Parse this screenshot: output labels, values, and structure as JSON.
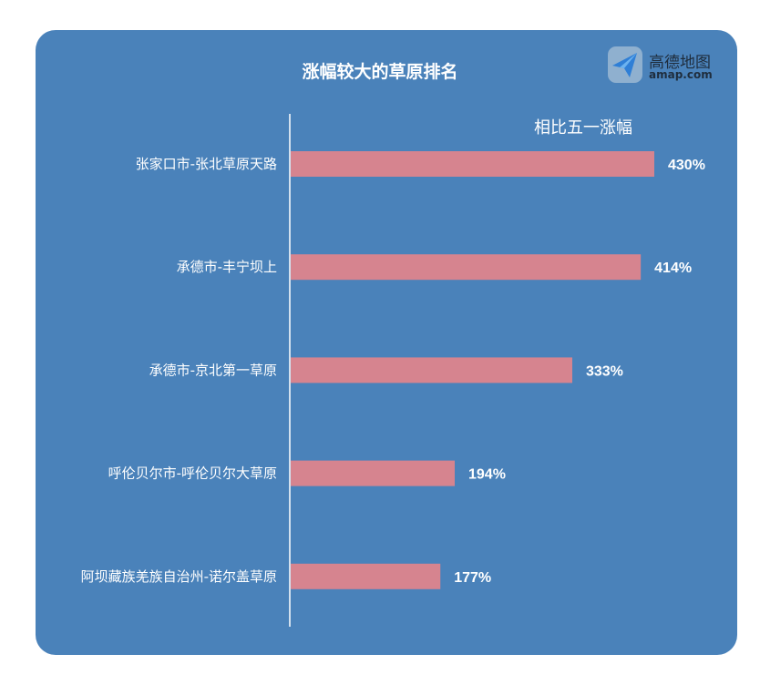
{
  "title": "涨幅较大的草原排名",
  "logo": {
    "name": "高德地图",
    "sub": "amap.com"
  },
  "colors": {
    "background": "#4a82ba",
    "bar": "#d6848f",
    "axis": "#ffffff",
    "text": "#ffffff"
  },
  "chart_data": {
    "type": "bar",
    "orientation": "horizontal",
    "title": "涨幅较大的草原排名",
    "categories": [
      "张家口市-张北草原天路",
      "承德市-丰宁坝上",
      "承德市-京北第一草原",
      "呼伦贝尔市-呼伦贝尔大草原",
      "阿坝藏族羌族自治州-诺尔盖草原"
    ],
    "series": [
      {
        "name": "相比五一涨幅",
        "values": [
          430,
          414,
          333,
          194,
          177
        ],
        "labels": [
          "430%",
          "414%",
          "333%",
          "194%",
          "177%"
        ]
      }
    ],
    "unit": "%",
    "xlim": [
      0,
      430
    ],
    "grid": false,
    "legend_position": "top-right"
  }
}
